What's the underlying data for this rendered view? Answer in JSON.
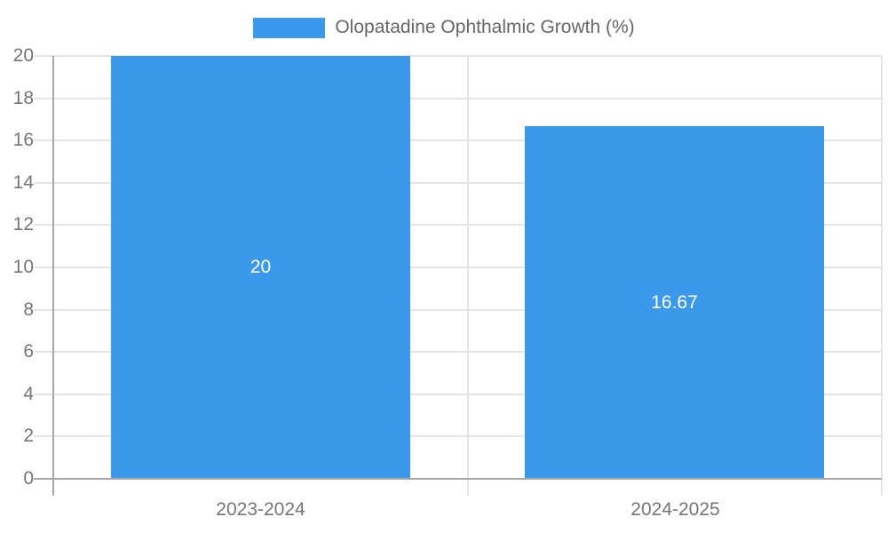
{
  "chart_data": {
    "type": "bar",
    "title": "",
    "categories": [
      "2023-2024",
      "2024-2025"
    ],
    "series": [
      {
        "name": "Olopatadine Ophthalmic Growth (%)",
        "values": [
          20,
          16.67
        ],
        "color": "#3b99ec"
      }
    ],
    "value_labels": [
      "20",
      "16.67"
    ],
    "ylim": [
      0,
      20
    ],
    "ytick_step": 2,
    "yticks": [
      0,
      2,
      4,
      6,
      8,
      10,
      12,
      14,
      16,
      18,
      20
    ],
    "grid": true,
    "legend_position": "top-center"
  },
  "legend": {
    "label": "Olopatadine Ophthalmic Growth (%)"
  },
  "colors": {
    "bar": "#3b99ec",
    "axis_line": "#a6a6a6",
    "gridline": "#e4e4e4",
    "tick_label": "#757575",
    "legend_text": "#666666",
    "bar_label": "#ffffff"
  }
}
